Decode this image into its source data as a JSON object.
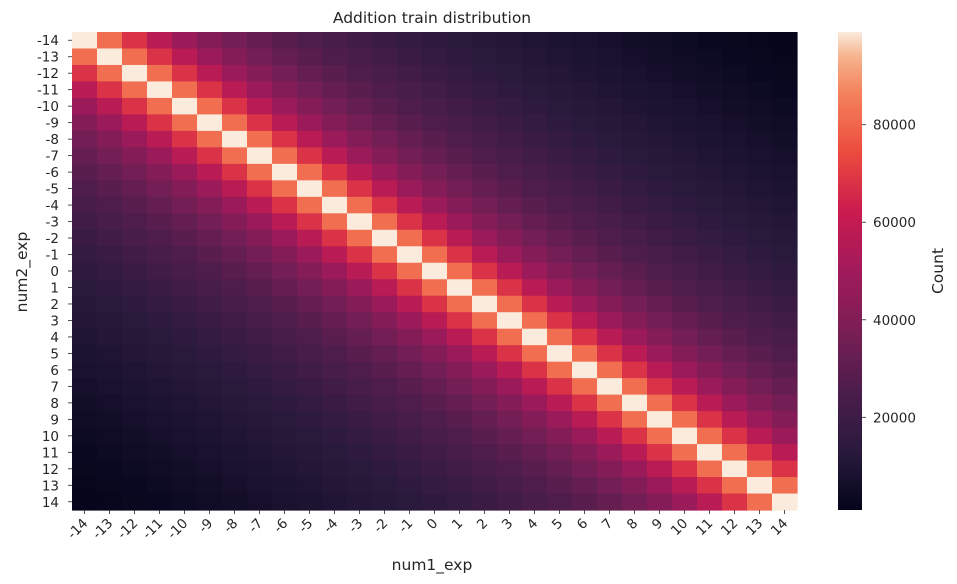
{
  "chart_data": {
    "type": "heatmap",
    "title": "Addition train distribution",
    "xlabel": "num1_exp",
    "ylabel": "num2_exp",
    "x_categories": [
      "-14",
      "-13",
      "-12",
      "-11",
      "-10",
      "-9",
      "-8",
      "-7",
      "-6",
      "-5",
      "-4",
      "-3",
      "-2",
      "-1",
      "0",
      "1",
      "2",
      "3",
      "4",
      "5",
      "6",
      "7",
      "8",
      "9",
      "10",
      "11",
      "12",
      "13",
      "14"
    ],
    "y_categories": [
      "-14",
      "-13",
      "-12",
      "-11",
      "-10",
      "-9",
      "-8",
      "-7",
      "-6",
      "-5",
      "-4",
      "-3",
      "-2",
      "-1",
      "0",
      "1",
      "2",
      "3",
      "4",
      "5",
      "6",
      "7",
      "8",
      "9",
      "10",
      "11",
      "12",
      "13",
      "14"
    ],
    "colormap": "rocket",
    "color_range": [
      1000,
      99000
    ],
    "colorbar": {
      "label": "Count",
      "ticks": [
        20000,
        40000,
        60000,
        80000
      ],
      "tick_labels": [
        "20000",
        "40000",
        "60000",
        "80000"
      ]
    },
    "values": [
      [
        99000,
        82000,
        68000,
        57000,
        48000,
        41000,
        36000,
        32000,
        29000,
        26000,
        24000,
        21000,
        19000,
        17000,
        15000,
        13000,
        12000,
        11000,
        10000,
        9000,
        8000,
        7000,
        6000,
        5000,
        4000,
        3000,
        2500,
        2000,
        1500
      ],
      [
        82000,
        99000,
        82000,
        68000,
        57000,
        48000,
        41000,
        36000,
        32000,
        29000,
        26000,
        24000,
        21000,
        19000,
        17000,
        15000,
        13000,
        12000,
        11000,
        10000,
        9000,
        8000,
        7000,
        6000,
        5000,
        4000,
        3000,
        2500,
        2000
      ],
      [
        68000,
        82000,
        99000,
        82000,
        68000,
        57000,
        48000,
        41000,
        36000,
        32000,
        29000,
        26000,
        24000,
        21000,
        19000,
        17000,
        15000,
        13000,
        12000,
        11000,
        10000,
        9000,
        8000,
        7000,
        6000,
        5000,
        4000,
        3000,
        2500
      ],
      [
        57000,
        68000,
        82000,
        99000,
        82000,
        68000,
        57000,
        48000,
        41000,
        36000,
        32000,
        29000,
        26000,
        24000,
        21000,
        19000,
        17000,
        15000,
        13000,
        12000,
        11000,
        10000,
        9000,
        8000,
        7000,
        6000,
        5000,
        4000,
        3000
      ],
      [
        48000,
        57000,
        68000,
        82000,
        99000,
        82000,
        68000,
        57000,
        48000,
        41000,
        36000,
        32000,
        29000,
        26000,
        24000,
        21000,
        19000,
        17000,
        15000,
        13000,
        12000,
        11000,
        10000,
        9000,
        8000,
        7000,
        6000,
        5000,
        4000
      ],
      [
        41000,
        48000,
        57000,
        68000,
        82000,
        99000,
        82000,
        68000,
        57000,
        48000,
        41000,
        36000,
        32000,
        29000,
        26000,
        24000,
        21000,
        19000,
        17000,
        15000,
        13000,
        12000,
        11000,
        10000,
        9000,
        8000,
        7000,
        6000,
        5000
      ],
      [
        36000,
        41000,
        48000,
        57000,
        68000,
        82000,
        99000,
        82000,
        68000,
        57000,
        48000,
        41000,
        36000,
        32000,
        29000,
        26000,
        24000,
        21000,
        19000,
        17000,
        15000,
        13000,
        12000,
        11000,
        10000,
        9000,
        8000,
        7000,
        6000
      ],
      [
        32000,
        36000,
        41000,
        48000,
        57000,
        68000,
        82000,
        99000,
        82000,
        68000,
        57000,
        48000,
        41000,
        36000,
        32000,
        29000,
        26000,
        24000,
        21000,
        19000,
        17000,
        15000,
        13000,
        12000,
        11000,
        10000,
        9000,
        8000,
        7000
      ],
      [
        29000,
        32000,
        36000,
        41000,
        48000,
        57000,
        68000,
        82000,
        99000,
        82000,
        68000,
        57000,
        48000,
        41000,
        36000,
        32000,
        29000,
        26000,
        24000,
        21000,
        19000,
        17000,
        15000,
        13000,
        12000,
        11000,
        10000,
        9000,
        8000
      ],
      [
        26000,
        29000,
        32000,
        36000,
        41000,
        48000,
        57000,
        68000,
        82000,
        99000,
        82000,
        68000,
        57000,
        48000,
        41000,
        36000,
        32000,
        29000,
        26000,
        24000,
        21000,
        19000,
        17000,
        15000,
        13000,
        12000,
        11000,
        10000,
        9000
      ],
      [
        24000,
        26000,
        29000,
        32000,
        36000,
        41000,
        48000,
        57000,
        68000,
        82000,
        99000,
        82000,
        68000,
        57000,
        48000,
        41000,
        36000,
        32000,
        29000,
        26000,
        24000,
        21000,
        19000,
        17000,
        15000,
        13000,
        12000,
        11000,
        10000
      ],
      [
        21000,
        24000,
        26000,
        29000,
        32000,
        36000,
        41000,
        48000,
        57000,
        68000,
        82000,
        99000,
        82000,
        68000,
        57000,
        48000,
        41000,
        36000,
        32000,
        29000,
        26000,
        24000,
        21000,
        19000,
        17000,
        15000,
        13000,
        12000,
        11000
      ],
      [
        19000,
        21000,
        24000,
        26000,
        29000,
        32000,
        36000,
        41000,
        48000,
        57000,
        68000,
        82000,
        99000,
        82000,
        68000,
        57000,
        48000,
        41000,
        36000,
        32000,
        29000,
        26000,
        24000,
        21000,
        19000,
        17000,
        15000,
        13000,
        12000
      ],
      [
        17000,
        19000,
        21000,
        24000,
        26000,
        29000,
        32000,
        36000,
        41000,
        48000,
        57000,
        68000,
        82000,
        99000,
        82000,
        68000,
        57000,
        48000,
        41000,
        36000,
        32000,
        29000,
        26000,
        24000,
        21000,
        19000,
        17000,
        15000,
        13000
      ],
      [
        15000,
        17000,
        19000,
        21000,
        24000,
        26000,
        29000,
        32000,
        36000,
        41000,
        48000,
        57000,
        68000,
        82000,
        99000,
        82000,
        68000,
        57000,
        48000,
        41000,
        36000,
        32000,
        29000,
        26000,
        24000,
        21000,
        19000,
        17000,
        15000
      ],
      [
        13000,
        15000,
        17000,
        19000,
        21000,
        24000,
        26000,
        29000,
        32000,
        36000,
        41000,
        48000,
        57000,
        68000,
        82000,
        99000,
        82000,
        68000,
        57000,
        48000,
        41000,
        36000,
        32000,
        29000,
        26000,
        24000,
        21000,
        19000,
        17000
      ],
      [
        12000,
        13000,
        15000,
        17000,
        19000,
        21000,
        24000,
        26000,
        29000,
        32000,
        36000,
        41000,
        48000,
        57000,
        68000,
        82000,
        99000,
        82000,
        68000,
        57000,
        48000,
        41000,
        36000,
        32000,
        29000,
        26000,
        24000,
        21000,
        19000
      ],
      [
        11000,
        12000,
        13000,
        15000,
        17000,
        19000,
        21000,
        24000,
        26000,
        29000,
        32000,
        36000,
        41000,
        48000,
        57000,
        68000,
        82000,
        99000,
        82000,
        68000,
        57000,
        48000,
        41000,
        36000,
        32000,
        29000,
        26000,
        24000,
        21000
      ],
      [
        10000,
        11000,
        12000,
        13000,
        15000,
        17000,
        19000,
        21000,
        24000,
        26000,
        29000,
        32000,
        36000,
        41000,
        48000,
        57000,
        68000,
        82000,
        99000,
        82000,
        68000,
        57000,
        48000,
        41000,
        36000,
        32000,
        29000,
        26000,
        24000
      ],
      [
        9000,
        10000,
        11000,
        12000,
        13000,
        15000,
        17000,
        19000,
        21000,
        24000,
        26000,
        29000,
        32000,
        36000,
        41000,
        48000,
        57000,
        68000,
        82000,
        99000,
        82000,
        68000,
        57000,
        48000,
        41000,
        36000,
        32000,
        29000,
        26000
      ],
      [
        8000,
        9000,
        10000,
        11000,
        12000,
        13000,
        15000,
        17000,
        19000,
        21000,
        24000,
        26000,
        29000,
        32000,
        36000,
        41000,
        48000,
        57000,
        68000,
        82000,
        99000,
        82000,
        68000,
        57000,
        48000,
        41000,
        36000,
        32000,
        29000
      ],
      [
        7000,
        8000,
        9000,
        10000,
        11000,
        12000,
        13000,
        15000,
        17000,
        19000,
        21000,
        24000,
        26000,
        29000,
        32000,
        36000,
        41000,
        48000,
        57000,
        68000,
        82000,
        99000,
        82000,
        68000,
        57000,
        48000,
        41000,
        36000,
        32000
      ],
      [
        6000,
        7000,
        8000,
        9000,
        10000,
        11000,
        12000,
        13000,
        15000,
        17000,
        19000,
        21000,
        24000,
        26000,
        29000,
        32000,
        36000,
        41000,
        48000,
        57000,
        68000,
        82000,
        99000,
        82000,
        68000,
        57000,
        48000,
        41000,
        36000
      ],
      [
        5000,
        6000,
        7000,
        8000,
        9000,
        10000,
        11000,
        12000,
        13000,
        15000,
        17000,
        19000,
        21000,
        24000,
        26000,
        29000,
        32000,
        36000,
        41000,
        48000,
        57000,
        68000,
        82000,
        99000,
        82000,
        68000,
        57000,
        48000,
        41000
      ],
      [
        4000,
        5000,
        6000,
        7000,
        8000,
        9000,
        10000,
        11000,
        12000,
        13000,
        15000,
        17000,
        19000,
        21000,
        24000,
        26000,
        29000,
        32000,
        36000,
        41000,
        48000,
        57000,
        68000,
        82000,
        99000,
        82000,
        68000,
        57000,
        48000
      ],
      [
        3000,
        4000,
        5000,
        6000,
        7000,
        8000,
        9000,
        10000,
        11000,
        12000,
        13000,
        15000,
        17000,
        19000,
        21000,
        24000,
        26000,
        29000,
        32000,
        36000,
        41000,
        48000,
        57000,
        68000,
        82000,
        99000,
        82000,
        68000,
        57000
      ],
      [
        2500,
        3000,
        4000,
        5000,
        6000,
        7000,
        8000,
        9000,
        10000,
        11000,
        12000,
        13000,
        15000,
        17000,
        19000,
        21000,
        24000,
        26000,
        29000,
        32000,
        36000,
        41000,
        48000,
        57000,
        68000,
        82000,
        99000,
        82000,
        68000
      ],
      [
        2000,
        2500,
        3000,
        4000,
        5000,
        6000,
        7000,
        8000,
        9000,
        10000,
        11000,
        12000,
        13000,
        15000,
        17000,
        19000,
        21000,
        24000,
        26000,
        29000,
        32000,
        36000,
        41000,
        48000,
        57000,
        68000,
        82000,
        99000,
        82000
      ],
      [
        1500,
        2000,
        2500,
        3000,
        4000,
        5000,
        6000,
        7000,
        8000,
        9000,
        10000,
        11000,
        12000,
        13000,
        15000,
        17000,
        19000,
        21000,
        24000,
        26000,
        29000,
        32000,
        36000,
        41000,
        48000,
        57000,
        68000,
        82000,
        99000
      ]
    ]
  }
}
